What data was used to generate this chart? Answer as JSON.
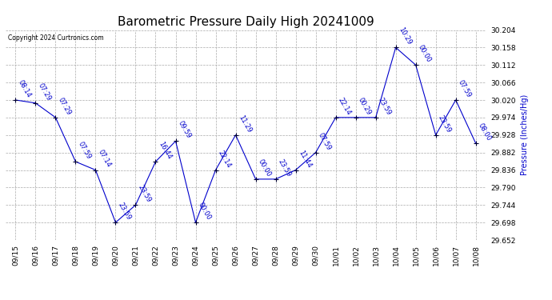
{
  "title": "Barometric Pressure Daily High 20241009",
  "copyright": "Copyright 2024 Curtronics.com",
  "ylabel": "Pressure (Inches/Hg)",
  "ylim": [
    29.652,
    30.204
  ],
  "yticks": [
    29.652,
    29.698,
    29.744,
    29.79,
    29.836,
    29.882,
    29.928,
    29.974,
    30.02,
    30.066,
    30.112,
    30.158,
    30.204
  ],
  "dates": [
    "09/15",
    "09/16",
    "09/17",
    "09/18",
    "09/19",
    "09/20",
    "09/21",
    "09/22",
    "09/23",
    "09/24",
    "09/25",
    "09/26",
    "09/27",
    "09/28",
    "09/29",
    "09/30",
    "10/01",
    "10/02",
    "10/03",
    "10/04",
    "10/05",
    "10/06",
    "10/07",
    "10/08"
  ],
  "values": [
    30.02,
    30.012,
    29.974,
    29.858,
    29.836,
    29.698,
    29.744,
    29.858,
    29.912,
    29.698,
    29.836,
    29.928,
    29.812,
    29.812,
    29.836,
    29.882,
    29.974,
    29.974,
    29.974,
    30.158,
    30.112,
    29.928,
    30.02,
    29.906
  ],
  "times": [
    "08:14",
    "07:29",
    "07:29",
    "07:59",
    "07:14",
    "23:59",
    "23:59",
    "16:44",
    "09:59",
    "00:00",
    "22:14",
    "11:29",
    "00:00",
    "23:59",
    "11:44",
    "07:59",
    "22:14",
    "00:29",
    "23:59",
    "10:29",
    "00:00",
    "23:59",
    "07:59",
    "08:00"
  ],
  "line_color": "#0000cc",
  "marker_color": "#000033",
  "label_color": "#0000cc",
  "bg_color": "#ffffff",
  "grid_color": "#aaaaaa",
  "title_fontsize": 11,
  "label_fontsize": 7,
  "tick_fontsize": 6.5,
  "point_label_fontsize": 6
}
